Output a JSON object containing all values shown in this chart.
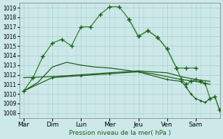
{
  "background_color": "#cce8e8",
  "grid_color": "#aacccc",
  "line_color_dark": "#1a5c1a",
  "line_color_light": "#3a8a3a",
  "xlabel": "Pression niveau de la mer( hPa )",
  "yticks": [
    1008,
    1009,
    1010,
    1011,
    1012,
    1013,
    1014,
    1015,
    1016,
    1017,
    1018,
    1019
  ],
  "xtick_labels": [
    "Mar",
    "Dim",
    "Lun",
    "Mer",
    "Jeu",
    "Ven",
    "Sam"
  ],
  "xtick_positions": [
    0,
    1,
    2,
    3,
    4,
    5,
    6
  ],
  "series_main": {
    "x": [
      0,
      0.33,
      0.67,
      1.0,
      1.33,
      1.67,
      2.0,
      2.33,
      2.67,
      3.0,
      3.33,
      3.67,
      4.0,
      4.33,
      4.67,
      5.0,
      5.33,
      5.67,
      6.0
    ],
    "y": [
      1010.3,
      1011.7,
      1013.9,
      1015.3,
      1015.7,
      1015.0,
      1017.0,
      1017.0,
      1018.3,
      1019.1,
      1019.1,
      1017.8,
      1016.0,
      1016.6,
      1015.9,
      1014.7,
      1012.7,
      1012.7,
      1012.7
    ]
  },
  "series_flat1": {
    "x": [
      0,
      1.0,
      2.0,
      3.0,
      4.0,
      5.0,
      5.5,
      6.0,
      6.5
    ],
    "y": [
      1011.7,
      1011.8,
      1012.0,
      1012.2,
      1012.4,
      1012.2,
      1011.8,
      1011.5,
      1011.3
    ]
  },
  "series_diagonal": {
    "x": [
      0,
      0.5,
      1.0,
      1.5,
      2.0,
      2.5,
      3.0,
      3.5,
      4.0,
      4.5,
      5.0,
      5.5,
      6.0,
      6.5
    ],
    "y": [
      1010.3,
      1011.2,
      1012.8,
      1013.3,
      1013.0,
      1012.8,
      1012.7,
      1012.5,
      1012.3,
      1012.1,
      1011.8,
      1011.5,
      1011.3,
      1011.0
    ]
  },
  "series_decline1": {
    "x": [
      0,
      1.0,
      2.0,
      3.0,
      4.0,
      5.0,
      5.5,
      5.67,
      5.83,
      6.0,
      6.17,
      6.33,
      6.5,
      6.67,
      6.83
    ],
    "y": [
      1010.3,
      1011.7,
      1011.9,
      1012.1,
      1012.3,
      1011.5,
      1011.3,
      1010.7,
      1010.0,
      1009.5,
      1009.3,
      1009.1,
      1009.5,
      1009.7,
      1008.3
    ]
  },
  "series_decline2": {
    "x": [
      3.67,
      4.0,
      4.33,
      4.67,
      5.0,
      5.33,
      5.5,
      5.67,
      5.83,
      6.0,
      6.17,
      6.33,
      6.5,
      6.67,
      6.83
    ],
    "y": [
      1017.8,
      1016.0,
      1016.6,
      1015.9,
      1014.7,
      1012.7,
      1011.5,
      1011.0,
      1011.3,
      1011.5,
      1011.3,
      1011.1,
      1009.5,
      1009.7,
      1008.3
    ]
  }
}
